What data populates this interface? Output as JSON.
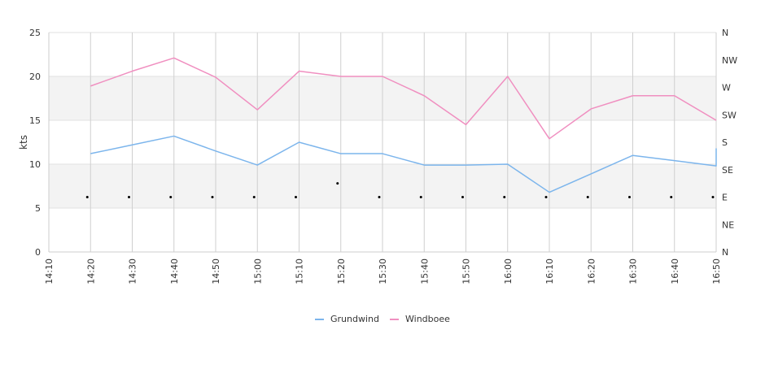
{
  "chart_data": {
    "type": "line",
    "title": "",
    "xlabel": "",
    "ylabel": "kts",
    "ylim": [
      0,
      25
    ],
    "y_ticks": [
      0,
      5,
      10,
      15,
      20,
      25
    ],
    "x_ticks": [
      "14:10",
      "14:20",
      "14:30",
      "14:40",
      "14:50",
      "15:00",
      "15:10",
      "15:20",
      "15:30",
      "15:40",
      "15:50",
      "16:00",
      "16:10",
      "16:20",
      "16:30",
      "16:40",
      "16:50"
    ],
    "y2_ticks": [
      "N",
      "NE",
      "E",
      "SE",
      "S",
      "SW",
      "W",
      "NW",
      "N"
    ],
    "bands": [
      [
        5,
        10
      ],
      [
        15,
        20
      ]
    ],
    "grid": true,
    "legend": "bottom-center",
    "series": [
      {
        "name": "Grundwind",
        "color": "#7cb5ec",
        "x": [
          "14:20",
          "14:30",
          "14:40",
          "14:50",
          "15:00",
          "15:10",
          "15:20",
          "15:30",
          "15:40",
          "15:50",
          "16:00",
          "16:10",
          "16:20",
          "16:30",
          "16:40",
          "16:50",
          "16:50"
        ],
        "values": [
          11.2,
          12.2,
          13.2,
          11.5,
          9.9,
          12.5,
          11.2,
          11.2,
          9.9,
          9.9,
          10.0,
          6.8,
          8.9,
          11.0,
          10.4,
          9.8,
          11.8
        ]
      },
      {
        "name": "Windboee",
        "color": "#f08fc0",
        "x": [
          "14:20",
          "14:30",
          "14:40",
          "14:50",
          "15:00",
          "15:10",
          "15:20",
          "15:30",
          "15:40",
          "15:50",
          "16:00",
          "16:10",
          "16:20",
          "16:30",
          "16:40",
          "16:50"
        ],
        "values": [
          18.9,
          20.6,
          22.1,
          19.9,
          16.2,
          20.6,
          20.0,
          20.0,
          17.8,
          14.5,
          20.0,
          12.9,
          16.3,
          17.8,
          17.8,
          15.0
        ]
      }
    ],
    "direction_markers": {
      "x": [
        "14:20",
        "14:30",
        "14:40",
        "14:50",
        "15:00",
        "15:10",
        "15:20",
        "15:30",
        "15:40",
        "15:50",
        "16:00",
        "16:10",
        "16:20",
        "16:30",
        "16:40",
        "16:50"
      ],
      "values": [
        "E",
        "E",
        "E",
        "E",
        "E",
        "E",
        "ESE",
        "E",
        "E",
        "E",
        "E",
        "E",
        "E",
        "E",
        "E",
        "E"
      ]
    }
  }
}
